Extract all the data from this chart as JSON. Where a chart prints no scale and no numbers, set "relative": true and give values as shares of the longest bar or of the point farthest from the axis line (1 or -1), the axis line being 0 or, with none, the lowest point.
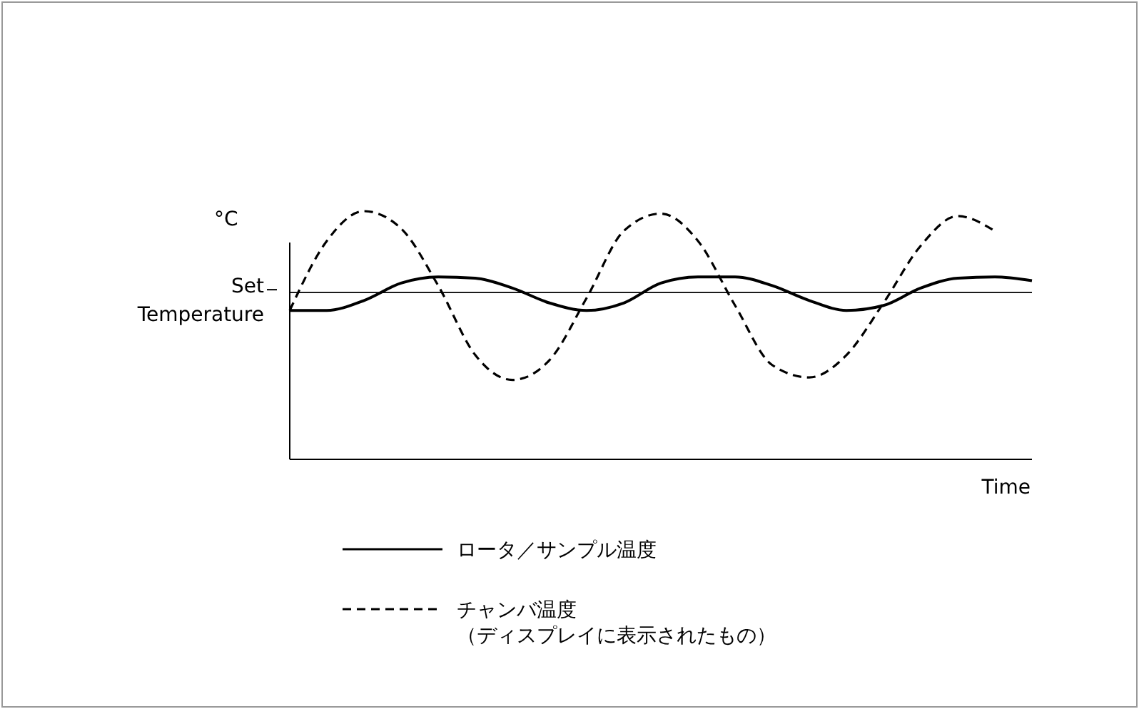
{
  "chart_data": {
    "type": "line",
    "relative": true,
    "ylabel": "°C",
    "xlabel": "Time",
    "legend": "bottom",
    "categories": [
      null,
      null,
      null,
      null,
      null,
      null,
      null,
      null,
      null,
      null,
      null,
      null,
      null,
      null,
      null,
      null,
      null,
      null,
      null,
      null,
      null
    ],
    "ref_lines": [
      {
        "axis": "y",
        "value": 0.672,
        "label": "Set Temperature",
        "color": "#000000",
        "line_style": "solid"
      }
    ],
    "series": [
      {
        "name": "ロータ／サンプル温度",
        "color": "#000000",
        "line_style": "solid",
        "values": [
          0.6,
          0.6,
          0.64,
          0.71,
          0.735,
          0.73,
          0.69,
          0.63,
          0.6,
          0.63,
          0.71,
          0.735,
          0.735,
          0.7,
          0.64,
          0.6,
          0.62,
          0.69,
          0.73,
          0.735,
          0.72
        ]
      },
      {
        "name": "チャンバ温度（ディスプレイに表示されたもの）",
        "color": "#000000",
        "line_style": "dashed",
        "values": [
          0.6,
          0.88,
          1.0,
          0.93,
          0.7,
          0.42,
          0.32,
          0.4,
          0.65,
          0.92,
          0.99,
          0.88,
          0.62,
          0.38,
          0.33,
          0.42,
          0.63,
          0.86,
          0.98,
          0.92,
          null
        ]
      }
    ]
  }
}
